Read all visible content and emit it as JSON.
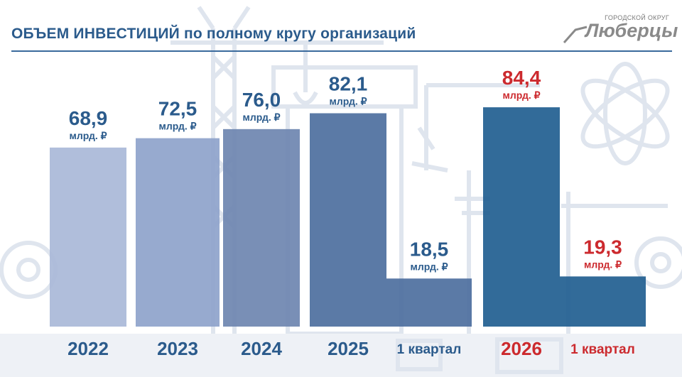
{
  "header": {
    "title": "ОБЪЕМ ИНВЕСТИЦИЙ по полному кругу организаций"
  },
  "logo": {
    "top_text": "ГОРОДСКОЙ ОКРУГ",
    "main_text": "Люберцы"
  },
  "colors": {
    "accent": "#2b5b8c",
    "highlight": "#cc2a2e",
    "bar_2022": "#a9b9d8",
    "bar_2023": "#8ea3cb",
    "bar_2024": "#6e86b0",
    "bar_2025": "#4d6f9e",
    "bar_2026": "#215e90"
  },
  "chart_data": {
    "type": "bar",
    "title": "ОБЪЕМ ИНВЕСТИЦИЙ по полному кругу организаций",
    "unit": "млрд. ₽",
    "ylim": [
      0,
      90
    ],
    "grid": false,
    "legend": "none",
    "bars": [
      {
        "category": "2022",
        "value": 68.9,
        "label": "68,9",
        "unit": "млрд. ₽",
        "color": "#a9b9d8",
        "text_color": "#2b5b8c",
        "cat_color": "#2b5b8c"
      },
      {
        "category": "2023",
        "value": 72.5,
        "label": "72,5",
        "unit": "млрд. ₽",
        "color": "#8ea3cb",
        "text_color": "#2b5b8c",
        "cat_color": "#2b5b8c"
      },
      {
        "category": "2024",
        "value": 76.0,
        "label": "76,0",
        "unit": "млрд. ₽",
        "color": "#6e86b0",
        "text_color": "#2b5b8c",
        "cat_color": "#2b5b8c"
      },
      {
        "category": "2025",
        "value": 82.1,
        "label": "82,1",
        "unit": "млрд. ₽",
        "color": "#4d6f9e",
        "text_color": "#2b5b8c",
        "cat_color": "#2b5b8c"
      },
      {
        "category": "1 квартал",
        "value": 18.5,
        "label": "18,5",
        "unit": "млрд. ₽",
        "color": "#4d6f9e",
        "text_color": "#2b5b8c",
        "cat_color": "#2b5b8c"
      },
      {
        "category": "2026",
        "value": 84.4,
        "label": "84,4",
        "unit": "млрд. ₽",
        "color": "#215e90",
        "text_color": "#cc2a2e",
        "cat_color": "#cc2a2e"
      },
      {
        "category": "1 квартал",
        "value": 19.3,
        "label": "19,3",
        "unit": "млрд. ₽",
        "color": "#215e90",
        "text_color": "#cc2a2e",
        "cat_color": "#cc2a2e"
      }
    ]
  }
}
